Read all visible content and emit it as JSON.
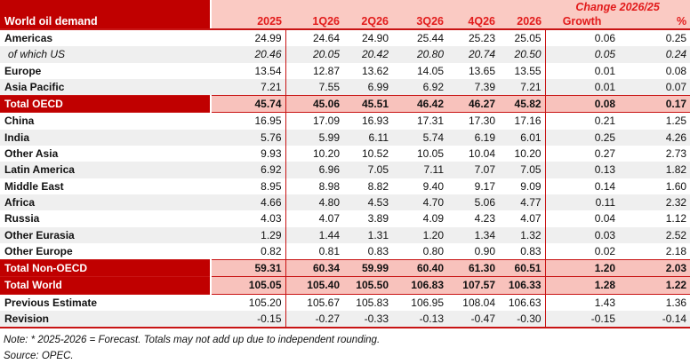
{
  "title": "World oil demand",
  "change_header": "Change 2026/25",
  "columns": [
    "2025",
    "1Q26",
    "2Q26",
    "3Q26",
    "4Q26",
    "2026",
    "Growth",
    "%"
  ],
  "colors": {
    "header_fill": "#C00000",
    "header_band_pink": "#FACAC3",
    "total_row_pink": "#F8C2BC",
    "header_text_red": "#E21B1B",
    "stripe_gray": "#EFEFEF",
    "rule_red": "#C81414"
  },
  "table": {
    "rows": [
      {
        "label": "Americas",
        "variant": "region",
        "shade": false,
        "values": [
          "24.99",
          "24.64",
          "24.90",
          "25.44",
          "25.23",
          "25.05",
          "0.06",
          "0.25"
        ]
      },
      {
        "label": "of which US",
        "variant": "sub",
        "shade": true,
        "values": [
          "20.46",
          "20.05",
          "20.42",
          "20.80",
          "20.74",
          "20.50",
          "0.05",
          "0.24"
        ]
      },
      {
        "label": "Europe",
        "variant": "region",
        "shade": false,
        "values": [
          "13.54",
          "12.87",
          "13.62",
          "14.05",
          "13.65",
          "13.55",
          "0.01",
          "0.08"
        ]
      },
      {
        "label": "Asia Pacific",
        "variant": "region",
        "shade": true,
        "values": [
          "7.21",
          "7.55",
          "6.99",
          "6.92",
          "7.39",
          "7.21",
          "0.01",
          "0.07"
        ]
      },
      {
        "label": "Total OECD",
        "variant": "total",
        "shade": false,
        "values": [
          "45.74",
          "45.06",
          "45.51",
          "46.42",
          "46.27",
          "45.82",
          "0.08",
          "0.17"
        ]
      },
      {
        "label": "China",
        "variant": "region",
        "shade": false,
        "values": [
          "16.95",
          "17.09",
          "16.93",
          "17.31",
          "17.30",
          "17.16",
          "0.21",
          "1.25"
        ]
      },
      {
        "label": "India",
        "variant": "region",
        "shade": true,
        "values": [
          "5.76",
          "5.99",
          "6.11",
          "5.74",
          "6.19",
          "6.01",
          "0.25",
          "4.26"
        ]
      },
      {
        "label": "Other Asia",
        "variant": "region",
        "shade": false,
        "values": [
          "9.93",
          "10.20",
          "10.52",
          "10.05",
          "10.04",
          "10.20",
          "0.27",
          "2.73"
        ]
      },
      {
        "label": "Latin America",
        "variant": "region",
        "shade": true,
        "values": [
          "6.92",
          "6.96",
          "7.05",
          "7.11",
          "7.07",
          "7.05",
          "0.13",
          "1.82"
        ]
      },
      {
        "label": "Middle East",
        "variant": "region",
        "shade": false,
        "values": [
          "8.95",
          "8.98",
          "8.82",
          "9.40",
          "9.17",
          "9.09",
          "0.14",
          "1.60"
        ]
      },
      {
        "label": "Africa",
        "variant": "region",
        "shade": true,
        "values": [
          "4.66",
          "4.80",
          "4.53",
          "4.70",
          "5.06",
          "4.77",
          "0.11",
          "2.32"
        ]
      },
      {
        "label": "Russia",
        "variant": "region",
        "shade": false,
        "values": [
          "4.03",
          "4.07",
          "3.89",
          "4.09",
          "4.23",
          "4.07",
          "0.04",
          "1.12"
        ]
      },
      {
        "label": "Other Eurasia",
        "variant": "region",
        "shade": true,
        "values": [
          "1.29",
          "1.44",
          "1.31",
          "1.20",
          "1.34",
          "1.32",
          "0.03",
          "2.52"
        ]
      },
      {
        "label": "Other Europe",
        "variant": "region",
        "shade": false,
        "values": [
          "0.82",
          "0.81",
          "0.83",
          "0.80",
          "0.90",
          "0.83",
          "0.02",
          "2.18"
        ]
      },
      {
        "label": "Total Non-OECD",
        "variant": "total",
        "shade": false,
        "values": [
          "59.31",
          "60.34",
          "59.99",
          "60.40",
          "61.30",
          "60.51",
          "1.20",
          "2.03"
        ]
      },
      {
        "label": "Total World",
        "variant": "total",
        "shade": false,
        "values": [
          "105.05",
          "105.40",
          "105.50",
          "106.83",
          "107.57",
          "106.33",
          "1.28",
          "1.22"
        ]
      },
      {
        "label": "Previous Estimate",
        "variant": "region",
        "shade": false,
        "values": [
          "105.20",
          "105.67",
          "105.83",
          "106.95",
          "108.04",
          "106.63",
          "1.43",
          "1.36"
        ]
      },
      {
        "label": "Revision",
        "variant": "region",
        "shade": true,
        "values": [
          "-0.15",
          "-0.27",
          "-0.33",
          "-0.13",
          "-0.47",
          "-0.30",
          "-0.15",
          "-0.14"
        ]
      }
    ]
  },
  "notes": {
    "note": "Note: * 2025-2026 = Forecast. Totals may not add up due to independent rounding.",
    "source": "Source: OPEC."
  }
}
